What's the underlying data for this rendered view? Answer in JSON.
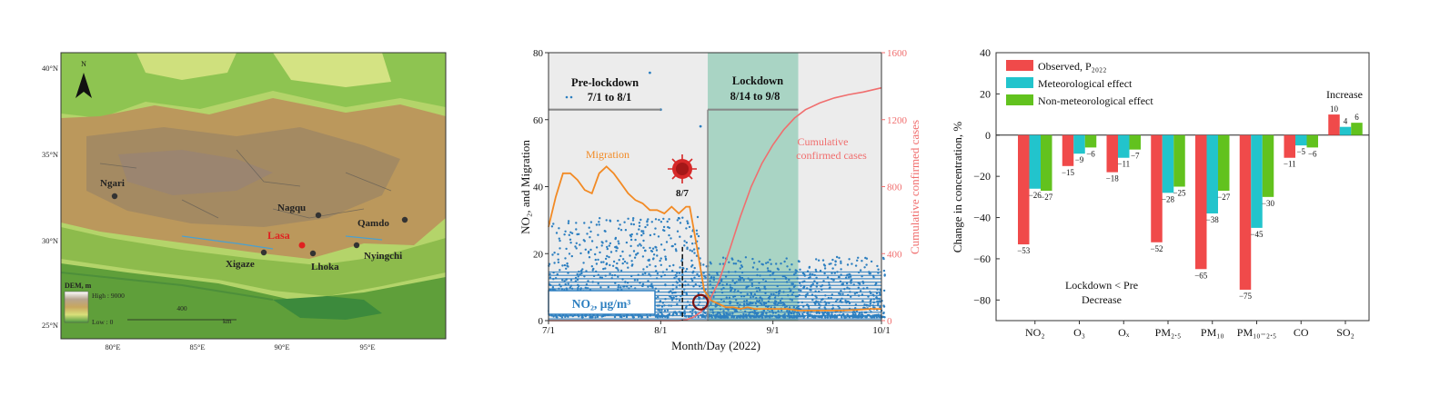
{
  "map_panel": {
    "north_label": "N",
    "lat_labels": [
      "40°N",
      "35°N",
      "30°N",
      "25°N"
    ],
    "lon_labels": [
      "80°E",
      "85°E",
      "90°E",
      "95°E"
    ],
    "cities": [
      {
        "name": "Ngari",
        "highlight": false
      },
      {
        "name": "Nagqu",
        "highlight": false
      },
      {
        "name": "Qamdo",
        "highlight": false
      },
      {
        "name": "Lasa",
        "highlight": true
      },
      {
        "name": "Xigaze",
        "highlight": false
      },
      {
        "name": "Lhoka",
        "highlight": false
      },
      {
        "name": "Nyingchi",
        "highlight": false
      }
    ],
    "legend_title": "DEM, m",
    "legend_high": "High : 9000",
    "legend_low": "Low : 0",
    "scale_value": "400",
    "scale_unit": "km",
    "colors": {
      "high_elev": "#b7a58f",
      "mid_elev": "#c8a75e",
      "low_elev": "#4d9a3f",
      "water": "#5fa3c7",
      "city": "#333333",
      "lasa": "#e02020"
    }
  },
  "chart_data": [
    {
      "type": "scatter+line",
      "xlabel": "Month/Day (2022)",
      "ylabel": "NO₂, and Migration",
      "y2label": "Cumulative confirmed cases",
      "x_ticks": [
        "7/1",
        "8/1",
        "9/1",
        "10/1"
      ],
      "y_ticks": [
        "0",
        "20",
        "40",
        "60",
        "80"
      ],
      "y2_ticks": [
        "0",
        "400",
        "800",
        "1200",
        "1600"
      ],
      "ylim": [
        0,
        80
      ],
      "y2lim": [
        0,
        1600
      ],
      "phases": [
        {
          "title": "Pre-lockdown",
          "period": "7/1 to 8/1",
          "start": "7/1",
          "end": "8/1",
          "level": 63
        },
        {
          "title": "Lockdown",
          "period": "8/14 to 9/8",
          "start": "8/14",
          "end": "9/8",
          "level": 63
        }
      ],
      "lockdown_shading": {
        "start": "8/14",
        "end": "9/8",
        "color": "#a9d4c4"
      },
      "event_label": "8/7",
      "event_date": "8/7",
      "no2_label": "NO₂, μg/m³",
      "migration_label": "Migration",
      "cases_label": "Cumulative\nconfirmed cases",
      "migration_series": {
        "name": "Migration",
        "dates": [
          "7/1",
          "7/3",
          "7/5",
          "7/7",
          "7/9",
          "7/11",
          "7/13",
          "7/15",
          "7/17",
          "7/19",
          "7/21",
          "7/23",
          "7/25",
          "7/27",
          "7/29",
          "7/31",
          "8/2",
          "8/4",
          "8/6",
          "8/8",
          "8/9",
          "8/11",
          "8/13",
          "8/15",
          "8/17",
          "8/19",
          "8/21",
          "8/23",
          "8/25",
          "8/27",
          "8/29",
          "8/31",
          "9/2",
          "9/5",
          "9/8",
          "9/12",
          "9/16",
          "9/20",
          "9/24",
          "9/28",
          "10/1"
        ],
        "values": [
          28,
          37,
          44,
          44,
          42,
          39,
          38,
          44,
          46,
          44,
          41,
          38,
          36,
          35,
          33,
          33,
          32,
          34,
          32,
          34,
          34,
          22,
          9,
          6,
          5,
          4,
          4,
          3.5,
          4,
          3.5,
          3.5,
          3.5,
          3.5,
          3.5,
          3,
          3,
          3,
          3,
          3.2,
          3.5,
          3.5
        ]
      },
      "cases_series": {
        "name": "Cumulative confirmed cases",
        "dates": [
          "7/1",
          "8/6",
          "8/8",
          "8/10",
          "8/12",
          "8/14",
          "8/17",
          "8/20",
          "8/23",
          "8/26",
          "8/29",
          "9/1",
          "9/4",
          "9/7",
          "9/10",
          "9/14",
          "9/18",
          "9/22",
          "9/26",
          "10/1"
        ],
        "values": [
          0,
          0,
          5,
          20,
          50,
          100,
          230,
          420,
          620,
          800,
          940,
          1050,
          1140,
          1210,
          1260,
          1300,
          1330,
          1350,
          1365,
          1390
        ]
      },
      "no2_scatter": {
        "range_low": 0,
        "range_high_pre": 30,
        "range_high_lockdown": 18,
        "outliers": [
          {
            "date": "7/29",
            "value": 74
          },
          {
            "date": "8/1",
            "value": 63
          },
          {
            "date": "8/12",
            "value": 58
          }
        ],
        "color": "#2d7fc0"
      },
      "colors": {
        "migration": "#f28a24",
        "cases": "#f06e6e",
        "phase_line": "#888888",
        "no2": "#2d7fc0"
      }
    },
    {
      "type": "bar",
      "ylabel": "Change in concentration, %",
      "ylim": [
        -90,
        40
      ],
      "y_ticks": [
        "40",
        "20",
        "0",
        "−20",
        "−40",
        "−60",
        "−80"
      ],
      "categories": [
        "NO₂",
        "O₃",
        "Oₓ",
        "PM₂.₅",
        "PM₁₀",
        "PM₁₀₋₂.₅",
        "CO",
        "SO₂"
      ],
      "series": [
        {
          "name": "Observed, P₂₀₂₂",
          "values": [
            -53,
            -15,
            -18,
            -52,
            -65,
            -75,
            -11,
            10
          ],
          "labels": [
            "−53",
            "−15",
            "−18",
            "−52",
            "−65",
            "−75",
            "−11",
            "10"
          ],
          "color": "#f04a4a"
        },
        {
          "name": "Meteorological effect",
          "values": [
            -26,
            -9,
            -11,
            -28,
            -38,
            -45,
            -5,
            4
          ],
          "labels": [
            "−26",
            "−9",
            "−11",
            "−28",
            "−38",
            "−45",
            "−5",
            "4"
          ],
          "color": "#22c4cc"
        },
        {
          "name": "Non-meteorological effect",
          "values": [
            -27,
            -6,
            -7,
            -25,
            -27,
            -30,
            -6,
            6
          ],
          "labels": [
            "−27",
            "−6",
            "−7",
            "−25",
            "−27",
            "−30",
            "−6",
            "6"
          ],
          "color": "#62c21e"
        }
      ],
      "annotations": {
        "increase": "Increase",
        "decrease_line1": "Lockdown < Pre",
        "decrease_line2": "Decrease"
      }
    }
  ]
}
